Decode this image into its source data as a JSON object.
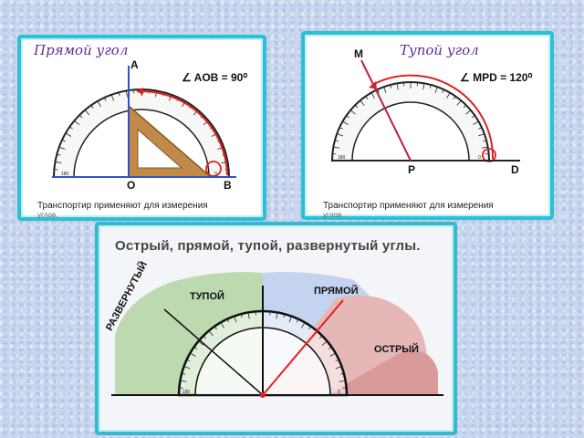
{
  "panel_right": {
    "title": "Прямой угол",
    "point_a": "A",
    "point_o": "O",
    "point_b": "B",
    "formula": "∠ AOB = 90⁰",
    "caption_line1": "Транспортир применяют для измерения",
    "caption_line2": "углов."
  },
  "panel_obtuse": {
    "title": "Тупой угол",
    "point_m": "M",
    "point_p": "P",
    "point_d": "D",
    "formula": "∠ MPD = 120⁰",
    "caption_line1": "Транспортир применяют для измерения",
    "caption_line2": "углов."
  },
  "panel_bottom": {
    "title": "Острый, прямой, тупой, развернутый углы.",
    "label_straight": "РАЗВЕРНУТЫЙ",
    "label_obtuse": "ТУПОЙ",
    "label_right": "ПРЯМОЙ",
    "label_acute": "ОСТРЫЙ"
  },
  "colors": {
    "frame": "#2cc0d5",
    "title_script": "#5a2e9a",
    "arc_red": "#e02020",
    "axis_blue": "#3050d0",
    "triangle": "#b57a3a",
    "zone_green": "#bcd9b0",
    "zone_pink": "#e6b7b7",
    "zone_blue": "#c4d3ef"
  }
}
